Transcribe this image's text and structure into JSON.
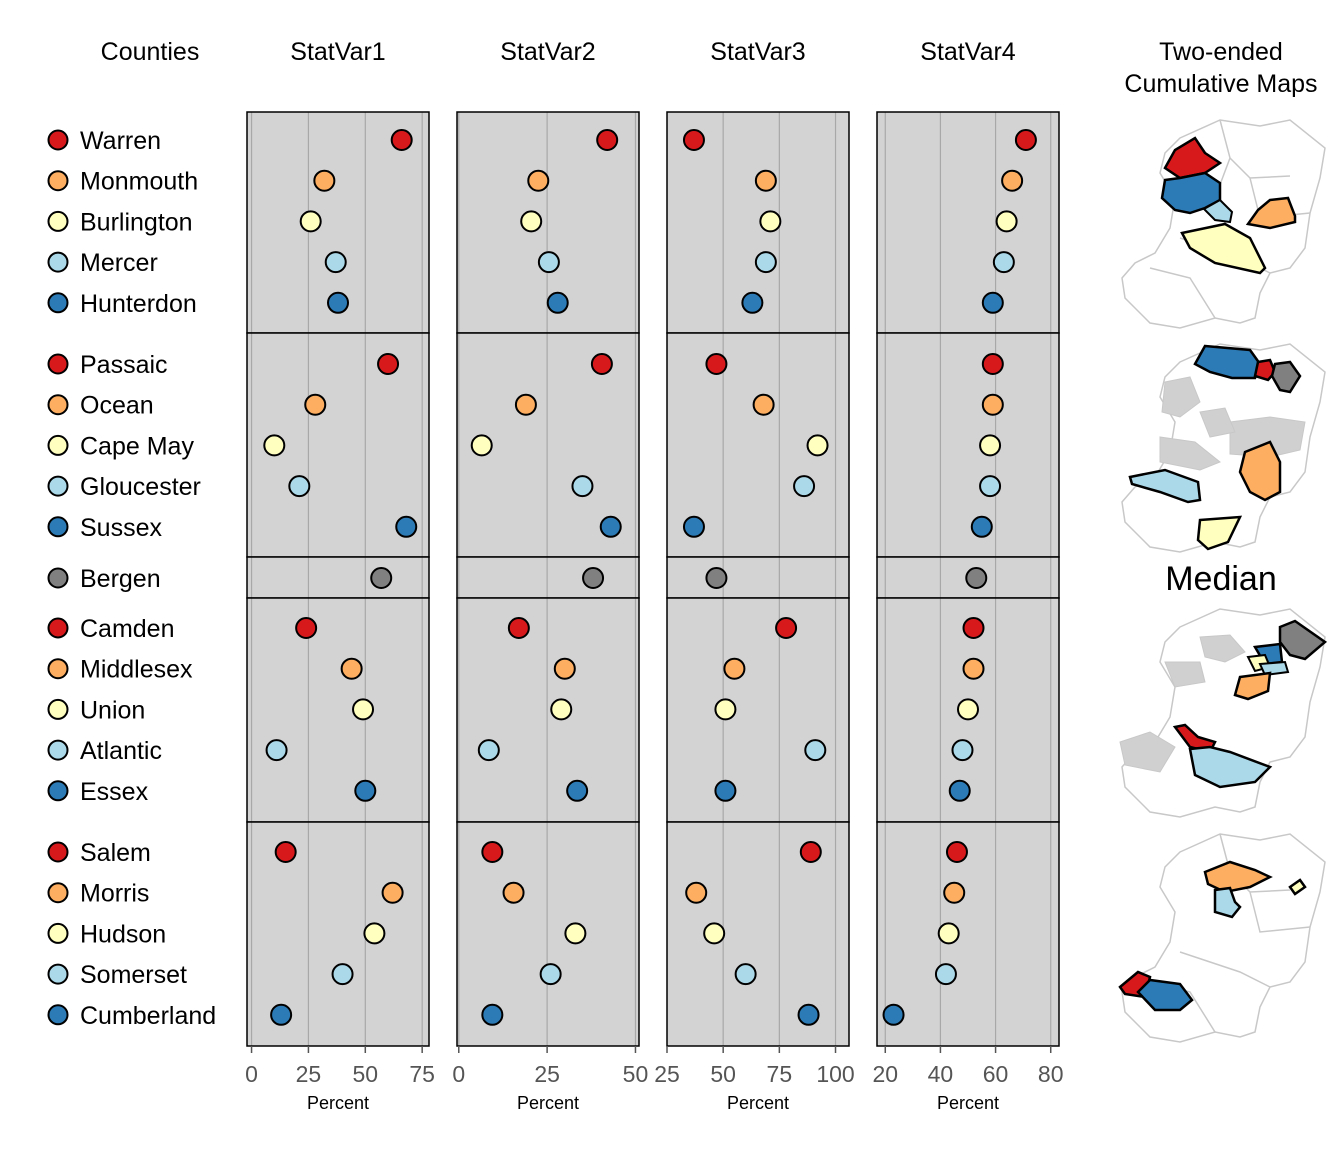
{
  "headers": {
    "counties": "Counties",
    "maps_line1": "Two-ended",
    "maps_line2": "Cumulative Maps",
    "median": "Median"
  },
  "colors": {
    "rank1": "#d7191c",
    "rank2": "#fdae61",
    "rank3": "#ffffbf",
    "rank4": "#abd9e9",
    "rank5": "#2c7bb6",
    "median": "#808080",
    "panel_bg": "#d3d3d3",
    "map_gray": "#d0d0d0"
  },
  "chart_data": {
    "type": "scatter",
    "x_axis_label": "Percent",
    "groups": [
      {
        "counties": [
          "Warren",
          "Monmouth",
          "Burlington",
          "Mercer",
          "Hunterdon"
        ],
        "colors": [
          "rank1",
          "rank2",
          "rank3",
          "rank4",
          "rank5"
        ]
      },
      {
        "counties": [
          "Passaic",
          "Ocean",
          "Cape May",
          "Gloucester",
          "Sussex"
        ],
        "colors": [
          "rank1",
          "rank2",
          "rank3",
          "rank4",
          "rank5"
        ]
      },
      {
        "counties": [
          "Bergen"
        ],
        "colors": [
          "median"
        ]
      },
      {
        "counties": [
          "Camden",
          "Middlesex",
          "Union",
          "Atlantic",
          "Essex"
        ],
        "colors": [
          "rank1",
          "rank2",
          "rank3",
          "rank4",
          "rank5"
        ]
      },
      {
        "counties": [
          "Salem",
          "Morris",
          "Hudson",
          "Somerset",
          "Cumberland"
        ],
        "colors": [
          "rank1",
          "rank2",
          "rank3",
          "rank4",
          "rank5"
        ]
      }
    ],
    "panels": [
      {
        "title": "StatVar1",
        "xlim": [
          -2,
          78
        ],
        "ticks": [
          0,
          25,
          50,
          75
        ],
        "tick_labels": [
          "0",
          "25",
          "50",
          "75"
        ],
        "values": [
          66,
          32,
          26,
          37,
          38,
          60,
          28,
          10,
          21,
          68,
          57,
          24,
          44,
          49,
          11,
          50,
          15,
          62,
          54,
          40,
          13
        ]
      },
      {
        "title": "StatVar2",
        "xlim": [
          -0.5,
          51
        ],
        "ticks": [
          0,
          25,
          50
        ],
        "tick_labels": [
          "0",
          "25",
          "50"
        ],
        "values": [
          42,
          22.5,
          20.5,
          25.5,
          28,
          40.5,
          19,
          6.5,
          35,
          43,
          38,
          17,
          30,
          29,
          8.5,
          33.5,
          9.5,
          15.5,
          33,
          26,
          9.5
        ]
      },
      {
        "title": "StatVar3",
        "xlim": [
          25,
          106
        ],
        "ticks": [
          25,
          50,
          75,
          100
        ],
        "tick_labels": [
          "25",
          "50",
          "75",
          "100"
        ],
        "values": [
          37,
          69,
          71,
          69,
          63,
          47,
          68,
          92,
          86,
          37,
          47,
          78,
          55,
          51,
          91,
          51,
          89,
          38,
          46,
          60,
          88
        ]
      },
      {
        "title": "StatVar4",
        "xlim": [
          17,
          83
        ],
        "ticks": [
          20,
          40,
          60,
          80
        ],
        "tick_labels": [
          "20",
          "40",
          "60",
          "80"
        ],
        "values": [
          71,
          66,
          64,
          63,
          59,
          59,
          59,
          58,
          58,
          55,
          53,
          52,
          52,
          50,
          48,
          47,
          46,
          45,
          43,
          42,
          23
        ]
      }
    ]
  },
  "maps": [
    {
      "name": "map-group-1"
    },
    {
      "name": "map-group-2"
    },
    {
      "name": "map-group-median-3"
    },
    {
      "name": "map-group-4"
    }
  ]
}
